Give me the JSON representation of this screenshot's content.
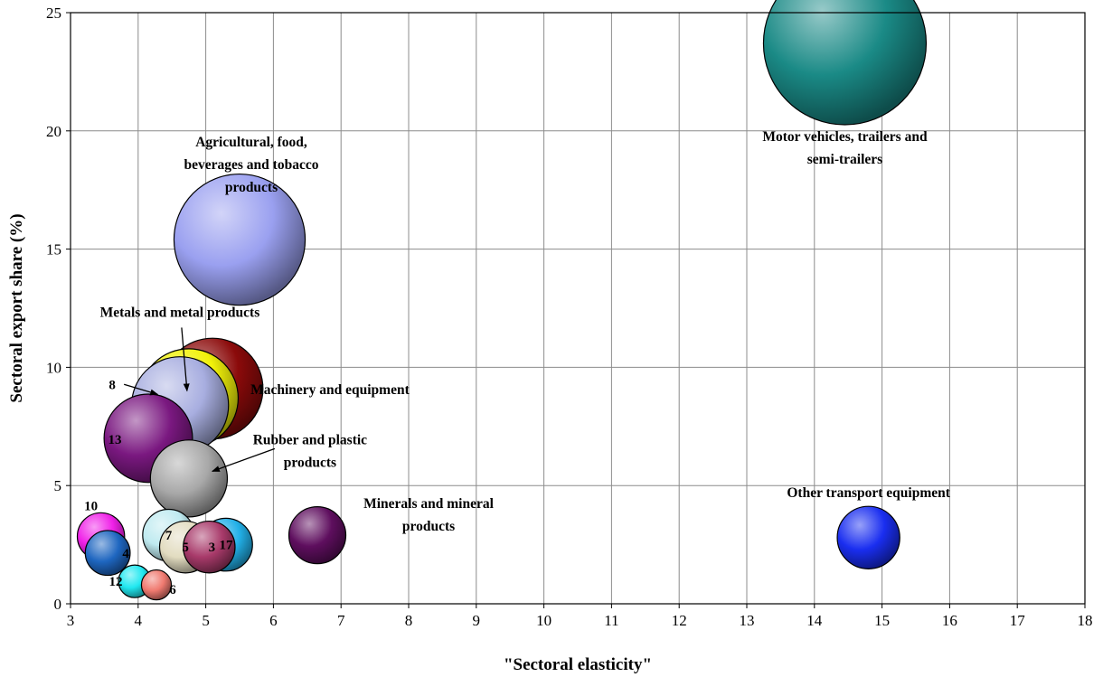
{
  "chart_data": {
    "type": "scatter",
    "title": "",
    "xlabel": "\"Sectoral elasticity\"",
    "ylabel": "Sectoral export share (%)",
    "xlim": [
      3,
      18
    ],
    "ylim": [
      0,
      25
    ],
    "xticks": [
      3,
      4,
      5,
      6,
      7,
      8,
      9,
      10,
      11,
      12,
      13,
      14,
      15,
      16,
      17,
      18
    ],
    "yticks": [
      0,
      5,
      10,
      15,
      20,
      25
    ],
    "grid": true,
    "points": [
      {
        "label": "Motor vehicles, trailers and semi-trailers",
        "x": 14.45,
        "y": 23.7,
        "size": 23.7,
        "color": "#1a8a86"
      },
      {
        "label": "Agricultural, food, beverages and tobacco products",
        "x": 5.5,
        "y": 15.4,
        "size": 15.4,
        "color": "#9aa0f0"
      },
      {
        "label": "Machinery and equipment",
        "x": 5.1,
        "y": 9.1,
        "size": 9.1,
        "color": "#8b0a0a"
      },
      {
        "label": "Metals and metal products",
        "x": 4.75,
        "y": 8.7,
        "size": 8.7,
        "color": "#f2f20a"
      },
      {
        "label": "8",
        "x": 4.62,
        "y": 8.4,
        "size": 8.4,
        "color": "#a8aee0"
      },
      {
        "label": "13",
        "x": 4.15,
        "y": 7.0,
        "size": 7.0,
        "color": "#7a1880"
      },
      {
        "label": "Rubber and plastic products",
        "x": 4.75,
        "y": 5.3,
        "size": 5.3,
        "color": "#a8a8a8"
      },
      {
        "label": "Minerals and mineral products",
        "x": 6.65,
        "y": 2.9,
        "size": 2.9,
        "color": "#5e0e5e"
      },
      {
        "label": "Other transport equipment",
        "x": 14.8,
        "y": 2.8,
        "size": 3.5,
        "color": "#1a2ef0"
      },
      {
        "label": "10",
        "x": 3.45,
        "y": 2.85,
        "size": 2.0,
        "color": "#f020e8"
      },
      {
        "label": "4",
        "x": 3.55,
        "y": 2.15,
        "size": 1.8,
        "color": "#1e66c0"
      },
      {
        "label": "7",
        "x": 4.45,
        "y": 2.9,
        "size": 2.4,
        "color": "#bfeaf0"
      },
      {
        "label": "5",
        "x": 4.7,
        "y": 2.4,
        "size": 2.4,
        "color": "#e2dcc0"
      },
      {
        "label": "3",
        "x": 5.05,
        "y": 2.4,
        "size": 2.4,
        "color": "#a83a6a"
      },
      {
        "label": "17",
        "x": 5.3,
        "y": 2.5,
        "size": 2.5,
        "color": "#22b0e8"
      },
      {
        "label": "12",
        "x": 3.95,
        "y": 0.95,
        "size": 0.95,
        "color": "#20e8f0"
      },
      {
        "label": "6",
        "x": 4.27,
        "y": 0.8,
        "size": 0.8,
        "color": "#f07a70"
      }
    ],
    "annotations": [
      {
        "text": [
          "Motor vehicles, trailers and",
          "semi-trailers"
        ]
      },
      {
        "text": [
          "Agricultural, food,",
          "beverages and tobacco",
          "products"
        ]
      },
      {
        "text": [
          "Machinery and equipment"
        ]
      },
      {
        "text": [
          "Metals and metal products"
        ]
      },
      {
        "text": [
          "8"
        ]
      },
      {
        "text": [
          "13"
        ]
      },
      {
        "text": [
          "Rubber and plastic",
          "products"
        ]
      },
      {
        "text": [
          "Minerals and mineral",
          "products"
        ]
      },
      {
        "text": [
          "Other transport equipment"
        ]
      },
      {
        "text": [
          "10"
        ]
      },
      {
        "text": [
          "4"
        ]
      },
      {
        "text": [
          "7"
        ]
      },
      {
        "text": [
          "5"
        ]
      },
      {
        "text": [
          "3"
        ]
      },
      {
        "text": [
          "17"
        ]
      },
      {
        "text": [
          "12"
        ]
      },
      {
        "text": [
          "6"
        ]
      }
    ]
  }
}
